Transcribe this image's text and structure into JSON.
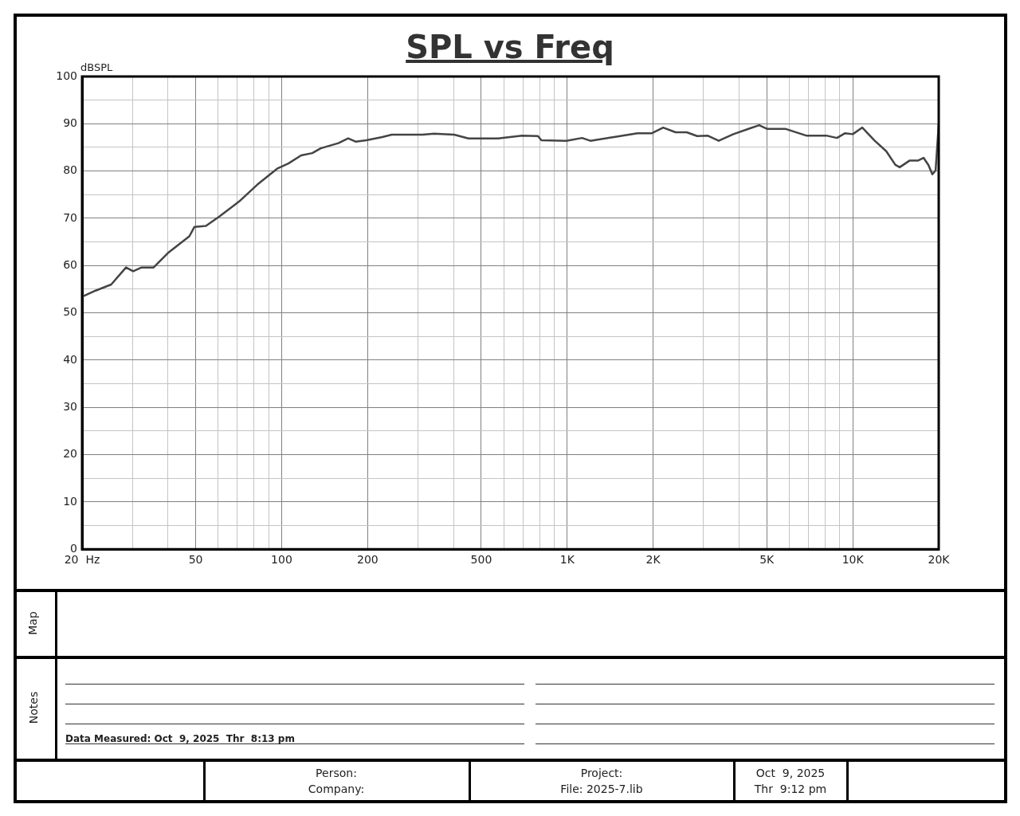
{
  "chart_data": {
    "type": "line",
    "title": "SPL vs Freq",
    "ylabel": "dBSPL",
    "log": "x",
    "grid": true,
    "legend": false,
    "marker": "none",
    "line_style": "solid",
    "x": [
      20,
      22.3,
      25.3,
      28.5,
      30.2,
      32.3,
      35.6,
      40.2,
      47.5,
      49.5,
      54.3,
      60.6,
      71.1,
      82.1,
      96.4,
      105.6,
      117,
      128,
      137,
      158,
      171,
      182,
      198,
      225,
      243,
      311,
      342,
      402,
      451,
      517,
      572,
      694,
      790,
      812,
      993,
      1127,
      1205,
      1458,
      1761,
      1980,
      2168,
      2396,
      2622,
      2851,
      3100,
      3393,
      3817,
      4350,
      4703,
      5021,
      5829,
      6870,
      8080,
      8800,
      9400,
      10000,
      10800,
      11900,
      13100,
      14100,
      14600,
      15800,
      16900,
      17700,
      18400,
      19000,
      19500,
      20000
    ],
    "series": [
      {
        "color": "#444444",
        "values": [
          53.4,
          54.7,
          56,
          59.6,
          58.8,
          59.6,
          59.6,
          62.8,
          66.2,
          68.2,
          68.4,
          70.4,
          73.6,
          77.1,
          80.5,
          81.6,
          83.3,
          83.8,
          84.8,
          85.9,
          86.9,
          86.2,
          86.5,
          87.2,
          87.7,
          87.7,
          87.9,
          87.7,
          86.9,
          86.9,
          86.9,
          87.5,
          87.4,
          86.5,
          86.4,
          87,
          86.4,
          87.2,
          88,
          88,
          89.2,
          88.2,
          88.2,
          87.4,
          87.5,
          86.4,
          87.8,
          89,
          89.7,
          88.9,
          88.9,
          87.5,
          87.5,
          87,
          88,
          87.8,
          89.2,
          86.5,
          84.2,
          81.3,
          80.8,
          82.2,
          82.2,
          82.8,
          81.3,
          79.3,
          80.1,
          89.9
        ]
      }
    ],
    "xlim": [
      20,
      20000
    ],
    "xticks": [
      {
        "value": 20,
        "label": "20  Hz"
      },
      {
        "value": 30,
        "label": null
      },
      {
        "value": 40,
        "label": null
      },
      50,
      {
        "value": 60,
        "label": null
      },
      {
        "value": 70,
        "label": null
      },
      {
        "value": 80,
        "label": null
      },
      {
        "value": 90,
        "label": null
      },
      100,
      200,
      {
        "value": 300,
        "label": null
      },
      {
        "value": 400,
        "label": null
      },
      500,
      {
        "value": 600,
        "label": null
      },
      {
        "value": 700,
        "label": null
      },
      {
        "value": 800,
        "label": null
      },
      {
        "value": 900,
        "label": null
      },
      {
        "value": 1000,
        "label": "1K"
      },
      {
        "value": 2000,
        "label": "2K"
      },
      {
        "value": 3000,
        "label": null
      },
      {
        "value": 4000,
        "label": null
      },
      {
        "value": 5000,
        "label": "5K"
      },
      {
        "value": 6000,
        "label": null
      },
      {
        "value": 7000,
        "label": null
      },
      {
        "value": 8000,
        "label": null
      },
      {
        "value": 9000,
        "label": null
      },
      {
        "value": 10000,
        "label": "10K"
      },
      {
        "value": 20000,
        "label": "20K"
      }
    ],
    "ylim": [
      0,
      100
    ],
    "yticks": [
      0,
      {
        "value": 5,
        "label": null
      },
      10,
      {
        "value": 15,
        "label": null
      },
      20,
      {
        "value": 25,
        "label": null
      },
      30,
      {
        "value": 35,
        "label": null
      },
      40,
      {
        "value": 45,
        "label": null
      },
      50,
      {
        "value": 55,
        "label": null
      },
      60,
      {
        "value": 65,
        "label": null
      },
      70,
      {
        "value": 75,
        "label": null
      },
      80,
      {
        "value": 85,
        "label": null
      },
      90,
      {
        "value": 95,
        "label": null
      },
      100
    ],
    "annotations": [
      "Map",
      "Notes",
      "Data Measured: Oct  9, 2025  Thr  8:13 pm",
      "Person:",
      "Company:",
      "Project:",
      "File: 2025-7.lib",
      "Oct  9, 2025",
      "Thr  9:12 pm"
    ]
  }
}
